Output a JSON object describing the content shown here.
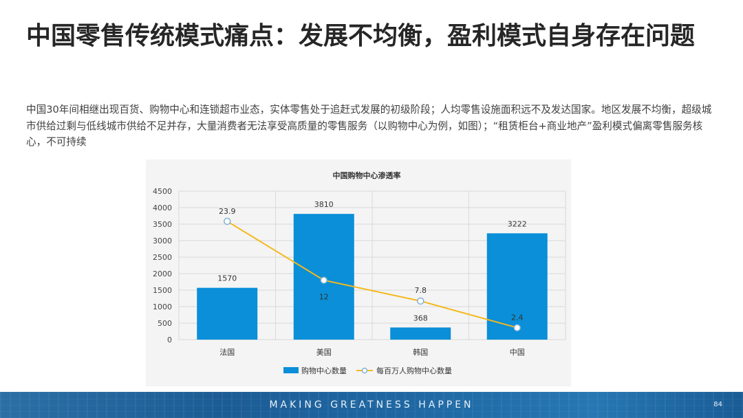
{
  "slide": {
    "title": "中国零售传统模式痛点：发展不均衡，盈利模式自身存在问题",
    "body": "中国30年间相继出现百货、购物中心和连锁超市业态，实体零售处于追赶式发展的初级阶段；人均零售设施面积远不及发达国家。地区发展不均衡，超级城市供给过剩与低线城市供给不足并存，大量消费者无法享受高质量的零售服务（以购物中心为例，如图）；“租赁柜台+商业地产”盈利模式偏离零售服务核心，不可持续"
  },
  "chart_data": {
    "type": "bar",
    "title": "中国购物中心渗透率",
    "categories": [
      "法国",
      "美国",
      "韩国",
      "中国"
    ],
    "series": [
      {
        "name": "购物中心数量",
        "type": "bar",
        "axis": "left",
        "values": [
          1570,
          3810,
          368,
          3222
        ],
        "labels": [
          "1570",
          "3810",
          "368",
          "3222"
        ],
        "color": "#0a8fd8"
      },
      {
        "name": "每百万人购物中心数量",
        "type": "line",
        "axis": "right",
        "values": [
          23.9,
          12,
          7.8,
          2.4
        ],
        "labels": [
          "23.9",
          "12",
          "7.8",
          "2.4"
        ],
        "color": "#f5b81c"
      }
    ],
    "left_axis": {
      "ylim": [
        0,
        4500
      ],
      "ticks": [
        "0",
        "500",
        "1000",
        "1500",
        "2000",
        "2500",
        "3000",
        "3500",
        "4000",
        "4500"
      ]
    },
    "right_axis": {
      "ylim": [
        0,
        30
      ],
      "ticks": [
        "0",
        "5",
        "10",
        "15",
        "20",
        "25",
        "30"
      ]
    },
    "grid": true,
    "legend_position": "bottom"
  },
  "footer": {
    "slogan": "MAKING GREATNESS HAPPEN",
    "page": "84"
  }
}
